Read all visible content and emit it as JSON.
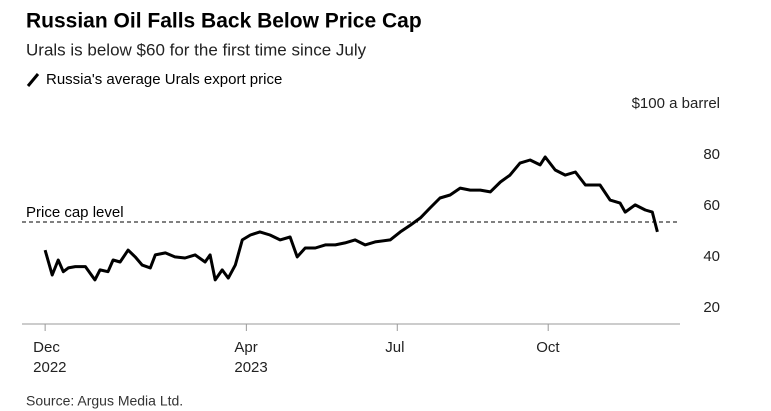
{
  "chart_data": {
    "type": "line",
    "title": "Russian Oil Falls Back Below Price Cap",
    "subtitle": "Urals is below $60 for the first time since July",
    "source": "Source: Argus Media Ltd.",
    "annotation": "Price cap level",
    "price_cap": 60,
    "x": [
      0,
      0.14,
      0.26,
      0.36,
      0.46,
      0.6,
      0.8,
      0.99,
      1.09,
      1.25,
      1.35,
      1.49,
      1.65,
      1.79,
      1.93,
      2.09,
      2.19,
      2.39,
      2.58,
      2.78,
      2.98,
      3.18,
      3.28,
      3.38,
      3.52,
      3.64,
      3.78,
      3.92,
      4.08,
      4.27,
      4.47,
      4.67,
      4.87,
      5.01,
      5.17,
      5.37,
      5.57,
      5.77,
      5.96,
      6.16,
      6.36,
      6.56,
      6.86,
      7.06,
      7.26,
      7.46,
      7.65,
      7.85,
      8.05,
      8.25,
      8.45,
      8.65,
      8.85,
      9.05,
      9.24,
      9.44,
      9.64,
      9.84,
      9.94,
      10.14,
      10.34,
      10.54,
      10.74,
      11.03,
      11.23,
      11.43,
      11.53,
      11.73,
      11.93,
      12.07,
      12.17
    ],
    "series": [
      {
        "name": "Russia's average Urals export price",
        "color": "#000000",
        "values": [
          49,
          39.2,
          45.1,
          40.5,
          42,
          42.5,
          42.5,
          37.3,
          41.2,
          40.5,
          45.1,
          44.3,
          49,
          46.3,
          43.1,
          42,
          47.1,
          47.9,
          46.3,
          45.9,
          47.1,
          44.3,
          47.1,
          37.3,
          41.2,
          38,
          43.1,
          53,
          54.9,
          56.1,
          54.9,
          53,
          54.1,
          46.3,
          49.8,
          49.8,
          51,
          51,
          51.8,
          53,
          51,
          52.2,
          53,
          56.1,
          58.8,
          61.6,
          65.5,
          69.4,
          70.6,
          73.3,
          72.5,
          72.5,
          71.8,
          75.7,
          78.4,
          83.1,
          84.3,
          82.4,
          85.5,
          80.4,
          78.4,
          79.6,
          74.5,
          74.5,
          68.6,
          67.4,
          63.9,
          66.7,
          64.7,
          63.9,
          56.1
        ]
      }
    ],
    "xlim": [
      -0.46,
      12.62
    ],
    "xticks": [
      {
        "value": 0,
        "label": "Dec\n2022"
      },
      {
        "value": 4,
        "label": "Apr\n2023"
      },
      {
        "value": 7,
        "label": "Jul"
      },
      {
        "value": 10,
        "label": "Oct"
      }
    ],
    "ylim": [
      20,
      100
    ],
    "yticks": [
      20,
      40,
      60,
      80,
      {
        "value": 100,
        "label": "$100 a barrel"
      }
    ],
    "grid": false
  }
}
